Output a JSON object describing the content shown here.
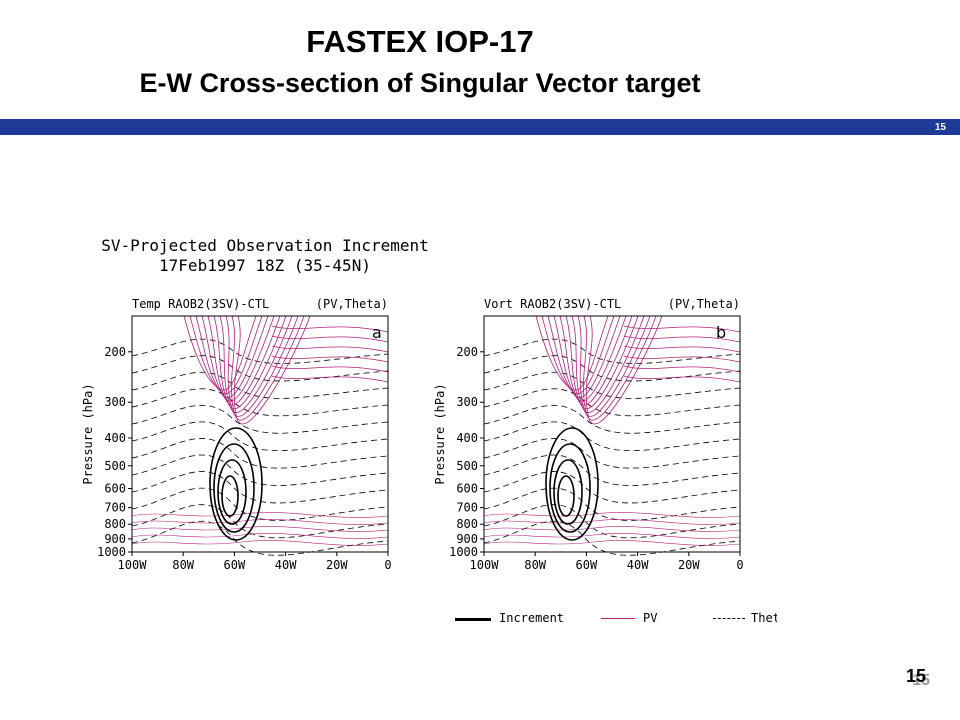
{
  "slide": {
    "title_line1": "FASTEX IOP-17",
    "title_line2": "E-W Cross-section of Singular Vector target",
    "band_number": "15",
    "page_number": "15",
    "page_number_shadow": "15",
    "band_color": "#1c3a96"
  },
  "figure": {
    "title_line1": "SV-Projected Observation Increment",
    "title_line2": "17Feb1997 18Z (35-45N)"
  },
  "panels": [
    {
      "header_left": "Temp RAOB2(3SV)-CTL",
      "header_right": "(PV,Theta)",
      "letter": "a",
      "ylabel": "Pressure (hPa)"
    },
    {
      "header_left": "Vort RAOB2(3SV)-CTL",
      "header_right": "(PV,Theta)",
      "letter": "b",
      "ylabel": "Pressure (hPa)"
    }
  ],
  "axes": {
    "y_ticks": [
      "200",
      "300",
      "400",
      "500",
      "600",
      "700",
      "800",
      "900",
      "1000"
    ],
    "x_ticks": [
      "100W",
      "80W",
      "60W",
      "40W",
      "20W",
      "0"
    ]
  },
  "legend": {
    "increment": "Increment",
    "pv": "PV",
    "theta": "Thet",
    "pv_color": "#b0207a"
  }
}
